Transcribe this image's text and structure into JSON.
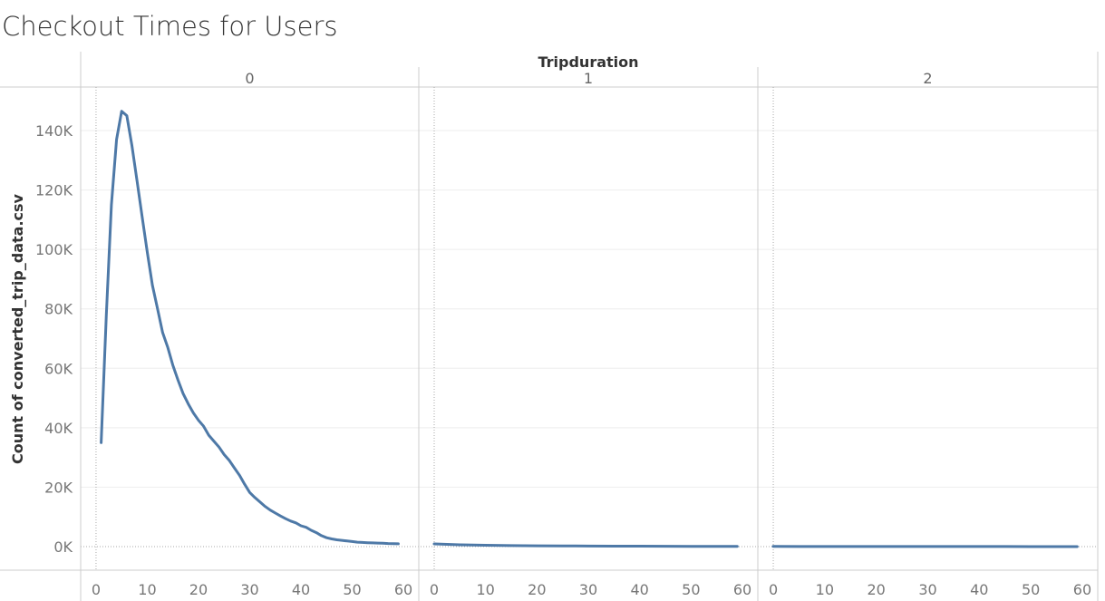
{
  "chart_data": {
    "type": "line",
    "title": "Checkout Times for Users",
    "facet_header": "Tripduration",
    "facet_labels": [
      "0",
      "1",
      "2"
    ],
    "ylabel": "Count of converted_trip_data.csv",
    "ylim": [
      -8000,
      150000
    ],
    "yticks": [
      0,
      20000,
      40000,
      60000,
      80000,
      100000,
      120000,
      140000
    ],
    "ytick_labels": [
      "0K",
      "20K",
      "40K",
      "60K",
      "80K",
      "100K",
      "120K",
      "140K"
    ],
    "xlim": [
      -3,
      63
    ],
    "xticks": [
      0,
      10,
      20,
      30,
      40,
      50,
      60
    ],
    "xtick_labels": [
      "0",
      "10",
      "20",
      "30",
      "40",
      "50",
      "60"
    ],
    "grid": true,
    "line_color": "#4e79a7",
    "series": [
      {
        "x": [
          1,
          2,
          3,
          4,
          5,
          6,
          7,
          8,
          9,
          10,
          11,
          12,
          13,
          14,
          15,
          16,
          17,
          18,
          19,
          20,
          21,
          22,
          23,
          24,
          25,
          26,
          27,
          28,
          29,
          30,
          31,
          32,
          33,
          34,
          35,
          36,
          37,
          38,
          39,
          40,
          41,
          42,
          43,
          44,
          45,
          46,
          47,
          48,
          49,
          50,
          51,
          52,
          53,
          54,
          55,
          56,
          57,
          58,
          59
        ],
        "values": [
          35000,
          78000,
          115000,
          137000,
          146500,
          145000,
          135000,
          123000,
          111000,
          99000,
          88000,
          80000,
          72000,
          67000,
          61000,
          56000,
          51500,
          48000,
          45000,
          42500,
          40500,
          37500,
          35500,
          33500,
          31000,
          29000,
          26500,
          24000,
          21000,
          18200,
          16500,
          15000,
          13500,
          12300,
          11300,
          10300,
          9400,
          8600,
          8000,
          7000,
          6500,
          5500,
          4700,
          3700,
          3000,
          2600,
          2300,
          2100,
          1900,
          1700,
          1500,
          1400,
          1300,
          1250,
          1200,
          1150,
          1050,
          1000,
          950
        ]
      },
      {
        "x": [
          0,
          5,
          10,
          15,
          20,
          25,
          30,
          35,
          40,
          45,
          50,
          55,
          59
        ],
        "values": [
          900,
          600,
          450,
          350,
          280,
          230,
          190,
          160,
          140,
          120,
          100,
          90,
          80
        ]
      },
      {
        "x": [
          0,
          5,
          10,
          15,
          20,
          25,
          30,
          35,
          40,
          45,
          50,
          55,
          59
        ],
        "values": [
          50,
          40,
          35,
          30,
          28,
          25,
          22,
          20,
          18,
          16,
          15,
          14,
          13
        ]
      }
    ]
  }
}
